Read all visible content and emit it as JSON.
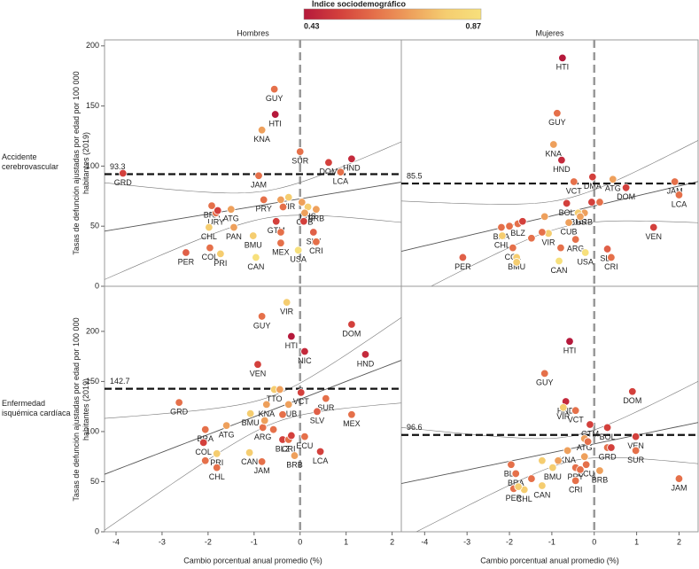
{
  "legend": {
    "title": "Índice sociodemográfico",
    "ticks": [
      0.43,
      0.87
    ],
    "colors": [
      "#b5193b",
      "#d3403c",
      "#e5704a",
      "#eea05c",
      "#f5cd70",
      "#f7e07c"
    ]
  },
  "chart_data": [
    {
      "type": "scatter",
      "title": "Hombres",
      "row_label": "Accidente cerebrovascular",
      "ylabel": "Tasas de defunción ajustadas por edad por 100 000 habitantes (2019)",
      "xlim": [
        -4.25,
        2.2
      ],
      "ylim": [
        0,
        205
      ],
      "yticks": [
        0,
        50,
        100,
        150,
        200
      ],
      "reference": 93.3,
      "reference_side": "left",
      "x": [
        -3.85,
        -0.56,
        -0.54,
        -0.83,
        0,
        0.62,
        1.12,
        0.88,
        -0.9,
        0.17,
        -0.25,
        -1.92,
        -1.5,
        -1.83,
        -0.79,
        0.35,
        0.1,
        -0.52,
        -1.98,
        -1.44,
        -1.02,
        0.29,
        -0.42,
        0.35,
        -0.04,
        -2.48,
        -1.96,
        -1.73,
        -0.96,
        -0.42,
        -0.37,
        0.04,
        0.08,
        -0.42,
        -1.79
      ],
      "values": [
        94,
        164,
        143,
        130,
        112,
        103,
        106,
        95,
        92,
        66,
        74,
        67,
        64,
        61,
        72,
        64,
        61,
        54,
        49,
        49,
        42,
        45,
        36,
        37,
        30,
        28,
        32,
        27,
        24,
        72,
        66,
        70,
        54,
        45,
        63
      ],
      "labels": [
        "GRD",
        "GUY",
        "HTI",
        "KNA",
        "SUR",
        "DOM",
        "HND",
        "LCA",
        "JAM",
        "BHS",
        "VIR",
        "BRA",
        "ATG",
        "URY",
        "PRY",
        "BRB",
        "CUB",
        "GTM",
        "CHL",
        "PAN",
        "BMU",
        "SLV",
        "MEX",
        "CRI",
        "USA",
        "PER",
        "COL",
        "PRI",
        "CAN",
        null,
        null,
        null,
        null,
        null,
        null
      ],
      "colors": [
        "#d3403c",
        "#e5704a",
        "#b5193b",
        "#eea05c",
        "#e5704a",
        "#d3403c",
        "#c42a3c",
        "#e5704a",
        "#e5704a",
        "#f5cd70",
        "#f5cd70",
        "#e5704a",
        "#eea05c",
        "#e5704a",
        "#e5704a",
        "#eea05c",
        "#eea05c",
        "#d3403c",
        "#f5cd70",
        "#eea05c",
        "#f5cd70",
        "#e06048",
        "#e5704a",
        "#e5704a",
        "#f7e07c",
        "#e06048",
        "#e5704a",
        "#f5cd70",
        "#f7e07c",
        "#eea05c",
        "#e5704a",
        "#eea05c",
        "#d3403c",
        "#e5704a",
        "#d3403c"
      ]
    },
    {
      "type": "scatter",
      "title": "Mujeres",
      "xlim": [
        -4.55,
        2.45
      ],
      "ylim": [
        0,
        205
      ],
      "reference": 85.5,
      "reference_side": "left",
      "x": [
        -0.75,
        -0.875,
        -0.96,
        -0.77,
        -0.48,
        -0.04,
        1.9,
        0.75,
        2.0,
        0.44,
        -0.65,
        -0.23,
        -0.38,
        -0.6,
        -2.19,
        -1.8,
        -2.17,
        -1.08,
        -1.92,
        -1.83,
        -0.44,
        0.31,
        1.4,
        0.4,
        -0.21,
        -0.83,
        -3.1,
        -2.0,
        -1.69,
        -1.17,
        -1.23,
        -1.48,
        -1.83,
        -0.79,
        -0.33,
        -0.06,
        0.13
      ],
      "values": [
        190,
        144,
        118,
        105,
        87,
        91,
        87,
        82,
        76,
        89,
        69,
        61,
        61,
        53,
        49,
        52,
        42,
        44,
        32,
        24,
        39,
        31,
        49,
        24,
        28,
        21,
        24,
        50,
        54,
        58,
        45,
        40,
        20,
        32,
        58,
        70,
        70
      ],
      "labels": [
        "HTI",
        "GUY",
        "KNA",
        "HND",
        "VCT",
        "DMA",
        "JAM",
        "DOM",
        "LCA",
        "ATG",
        "BOL",
        "BRB",
        "BHS",
        "CUB",
        "BRA",
        "BLZ",
        "CHL",
        "VIR",
        "COL",
        "BMU",
        "ARG",
        "SLV",
        "VEN",
        "CRI",
        "USA",
        "CAN",
        "PER",
        null,
        null,
        null,
        null,
        null,
        null,
        null,
        null,
        null,
        null
      ],
      "colors": [
        "#b5193b",
        "#e5704a",
        "#eea05c",
        "#c42a3c",
        "#e5704a",
        "#d3403c",
        "#e5704a",
        "#d3403c",
        "#e5704a",
        "#eea05c",
        "#d3403c",
        "#eea05c",
        "#f5cd70",
        "#eea05c",
        "#e5704a",
        "#e5704a",
        "#f5cd70",
        "#f5cd70",
        "#e5704a",
        "#f5cd70",
        "#e5704a",
        "#e06048",
        "#d3403c",
        "#e5704a",
        "#f7e07c",
        "#f7e07c",
        "#e06048",
        "#e5704a",
        "#d3403c",
        "#eea05c",
        "#e5704a",
        "#e5704a",
        "#f5cd70",
        "#e5704a",
        "#eea05c",
        "#d3403c",
        "#e5704a"
      ]
    },
    {
      "type": "scatter",
      "row_label": "Enfermedad isquémica cardíaca",
      "ylabel": "Tasas de defunción ajustadas por edad por 100 000 habitantes (2019)",
      "xlabel": "Cambio porcentual anual promedio (%)",
      "xlim": [
        -4.25,
        2.2
      ],
      "ylim": [
        0,
        245
      ],
      "yticks": [
        0,
        50,
        100,
        150,
        200
      ],
      "xticks": [
        -4,
        -3,
        -2,
        -1,
        0,
        1,
        2
      ],
      "reference": 142.7,
      "reference_side": "left",
      "x": [
        -0.83,
        -0.29,
        1.12,
        -0.19,
        0.1,
        1.42,
        -0.92,
        -0.56,
        0.02,
        -2.63,
        0.56,
        -0.25,
        0.37,
        1.12,
        -0.73,
        -1.08,
        -1.6,
        -2.06,
        -0.81,
        -0.38,
        -2.1,
        -0.25,
        0.1,
        -1.81,
        -1.1,
        -0.83,
        0.44,
        -0.12,
        -1.81,
        -0.44,
        -0.38,
        -0.58,
        -2.06,
        -0.77,
        -0.19
      ],
      "values": [
        215,
        229,
        207,
        195,
        180,
        177,
        167,
        142,
        139,
        129,
        133,
        127,
        120,
        117,
        127,
        118,
        106,
        102,
        104,
        92,
        89,
        92,
        95,
        78,
        79,
        70,
        80,
        76,
        64,
        142,
        117,
        102,
        71,
        111,
        96
      ],
      "labels": [
        "GUY",
        "VIR",
        "DOM",
        "HTI",
        "NIC",
        "HND",
        "VEN",
        "TTO",
        "VCT",
        "GRD",
        "SUR",
        "CUB",
        "SLV",
        "MEX",
        "KNA",
        "BMU",
        "ATG",
        "BRA",
        "ARG",
        "BLZ",
        "COL",
        "CRI",
        "ECU",
        "PRI",
        "CAN",
        "JAM",
        "LCA",
        "BRB",
        "CHL",
        null,
        null,
        null,
        null,
        null,
        null
      ],
      "colors": [
        "#e5704a",
        "#f5cd70",
        "#d3403c",
        "#b5193b",
        "#c42a3c",
        "#c42a3c",
        "#d3403c",
        "#f5cd70",
        "#d3403c",
        "#e5704a",
        "#e5704a",
        "#eea05c",
        "#e06048",
        "#e5704a",
        "#eea05c",
        "#f5cd70",
        "#eea05c",
        "#e5704a",
        "#e5704a",
        "#d3403c",
        "#d3403c",
        "#e5704a",
        "#e5704a",
        "#f5cd70",
        "#f5cd70",
        "#e5704a",
        "#d3403c",
        "#eea05c",
        "#e5704a",
        "#eea05c",
        "#e5704a",
        "#e5704a",
        "#e5704a",
        "#eea05c",
        "#d3403c"
      ]
    },
    {
      "type": "scatter",
      "xlabel": "Cambio porcentual anual promedio (%)",
      "xlim": [
        -4.55,
        2.45
      ],
      "ylim": [
        0,
        245
      ],
      "xticks": [
        -4,
        -3,
        -2,
        -1,
        0,
        1,
        2
      ],
      "reference": 96.6,
      "reference_side": "left",
      "x": [
        -0.58,
        -1.17,
        0.9,
        -0.67,
        -0.73,
        -0.44,
        -0.1,
        0.31,
        0.98,
        -0.23,
        -0.63,
        0.31,
        0.98,
        -1.96,
        -1.85,
        -0.98,
        -0.44,
        -0.19,
        0.13,
        -0.44,
        2.0,
        -1.65,
        -1.9,
        -1.23,
        -1.23,
        -0.85,
        -1.48,
        -1.79,
        -0.23,
        -0.15,
        -0.33,
        0.4
      ],
      "values": [
        190,
        158,
        140,
        130,
        124,
        121,
        107,
        104,
        95,
        93,
        81,
        84,
        81,
        67,
        58,
        64,
        64,
        67,
        61,
        51,
        53,
        42,
        43,
        46,
        71,
        71,
        53,
        45,
        75,
        90,
        62,
        84
      ],
      "labels": [
        "HTI",
        "GUY",
        "DOM",
        "HND",
        "VIR",
        "VCT",
        "GTM",
        "BOL",
        "VEN",
        "ATG",
        "KNA",
        "GRD",
        "SUR",
        "BLZ",
        "BRA",
        "BMU",
        "PRY",
        "ECU",
        "BRB",
        "CRI",
        "JAM",
        "CHL",
        "PER",
        "CAN",
        null,
        null,
        null,
        null,
        null,
        null,
        null,
        null
      ],
      "colors": [
        "#b5193b",
        "#e5704a",
        "#d3403c",
        "#c42a3c",
        "#f5cd70",
        "#e5704a",
        "#d3403c",
        "#d3403c",
        "#d3403c",
        "#eea05c",
        "#eea05c",
        "#e5704a",
        "#e5704a",
        "#e5704a",
        "#e5704a",
        "#f5cd70",
        "#e5704a",
        "#e5704a",
        "#eea05c",
        "#e5704a",
        "#e5704a",
        "#f5cd70",
        "#e5704a",
        "#f5cd70",
        "#f5cd70",
        "#eea05c",
        "#e5704a",
        "#f5cd70",
        "#eea05c",
        "#e5704a",
        "#e5704a",
        "#d3403c"
      ]
    }
  ]
}
